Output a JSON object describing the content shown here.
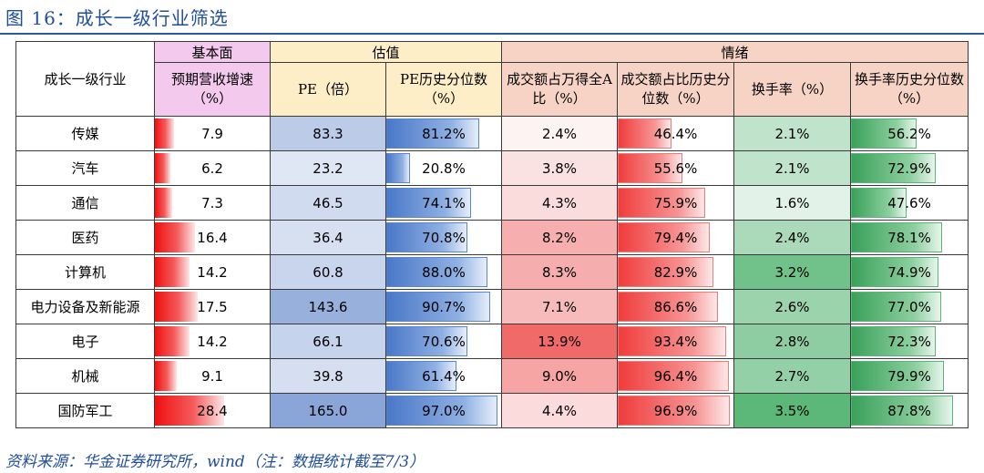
{
  "title": "图 16：成长一级行业筛选",
  "source": "资料来源：华金证券研究所，wind（注：数据统计截至7/3）",
  "header": {
    "industry": "成长一级行业",
    "group_fund": "基本面",
    "group_val": "估值",
    "group_sent": "情绪",
    "col_rev": "预期营收增速（%）",
    "col_pe": "PE（倍）",
    "col_pe_pct": "PE历史分位数（%）",
    "col_share": "成交额占万得全A比（%）",
    "col_share_pct": "成交额占比历史分位数（%）",
    "col_turn": "换手率（%）",
    "col_turn_pct": "换手率历史分位数（%）"
  },
  "colors": {
    "fund_header": "#f4c9ee",
    "val_header": "#fdeec7",
    "sent_header": "#f7d3c5"
  },
  "rows": [
    {
      "name": "传媒",
      "rev": "7.9",
      "pe": "83.3",
      "pe_pct": "81.2%",
      "share": "2.4%",
      "share_pct": "46.4%",
      "turn": "2.1%",
      "turn_pct": "56.2%"
    },
    {
      "name": "汽车",
      "rev": "6.2",
      "pe": "23.2",
      "pe_pct": "20.8%",
      "share": "3.8%",
      "share_pct": "55.6%",
      "turn": "2.1%",
      "turn_pct": "72.9%"
    },
    {
      "name": "通信",
      "rev": "7.3",
      "pe": "46.5",
      "pe_pct": "74.1%",
      "share": "4.3%",
      "share_pct": "75.9%",
      "turn": "1.6%",
      "turn_pct": "47.6%"
    },
    {
      "name": "医药",
      "rev": "16.4",
      "pe": "36.4",
      "pe_pct": "70.8%",
      "share": "8.2%",
      "share_pct": "79.4%",
      "turn": "2.4%",
      "turn_pct": "78.1%"
    },
    {
      "name": "计算机",
      "rev": "14.2",
      "pe": "60.8",
      "pe_pct": "88.0%",
      "share": "8.3%",
      "share_pct": "82.9%",
      "turn": "3.2%",
      "turn_pct": "74.9%"
    },
    {
      "name": "电力设备及新能源",
      "rev": "17.5",
      "pe": "143.6",
      "pe_pct": "90.7%",
      "share": "7.1%",
      "share_pct": "86.6%",
      "turn": "2.6%",
      "turn_pct": "77.0%"
    },
    {
      "name": "电子",
      "rev": "14.2",
      "pe": "66.1",
      "pe_pct": "70.6%",
      "share": "13.9%",
      "share_pct": "93.4%",
      "turn": "2.8%",
      "turn_pct": "72.3%"
    },
    {
      "name": "机械",
      "rev": "9.1",
      "pe": "39.8",
      "pe_pct": "61.4%",
      "share": "9.0%",
      "share_pct": "96.4%",
      "turn": "2.7%",
      "turn_pct": "79.9%"
    },
    {
      "name": "国防军工",
      "rev": "28.4",
      "pe": "165.0",
      "pe_pct": "97.0%",
      "share": "4.4%",
      "share_pct": "96.9%",
      "turn": "3.5%",
      "turn_pct": "87.8%"
    }
  ]
}
